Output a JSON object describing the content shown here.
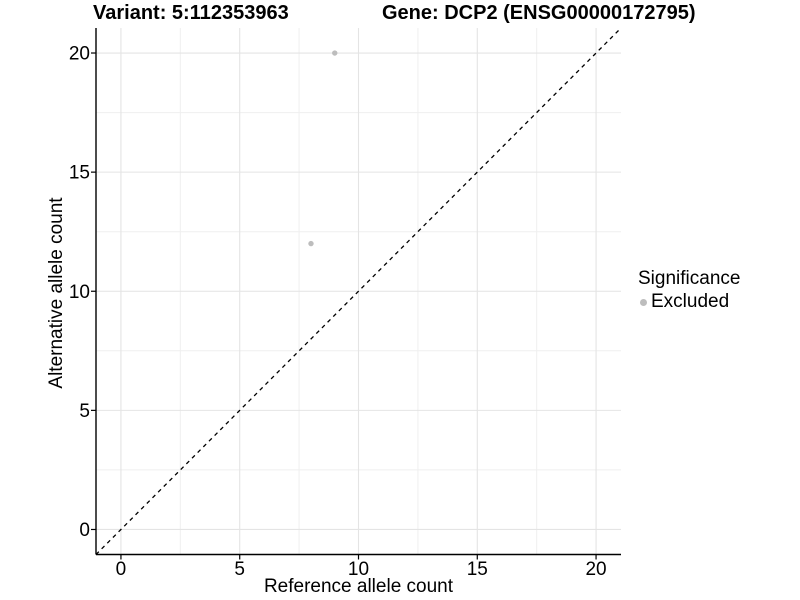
{
  "figure": {
    "title_left": "Variant: 5:112353963",
    "title_right": "Gene: DCP2 (ENSG00000172795)"
  },
  "axes": {
    "x_label": "Reference allele count",
    "y_label": "Alternative allele count"
  },
  "legend": {
    "title": "Significance",
    "items": [
      {
        "label": "Excluded",
        "color": "#bdbdbd"
      }
    ]
  },
  "chart_data": {
    "type": "scatter",
    "title": "Variant: 5:112353963 | Gene: DCP2 (ENSG00000172795)",
    "xlabel": "Reference allele count",
    "ylabel": "Alternative allele count",
    "xlim": [
      -1.05,
      21.05
    ],
    "ylim": [
      -1.05,
      21.05
    ],
    "x_ticks": [
      0,
      5,
      10,
      15,
      20
    ],
    "y_ticks": [
      0,
      5,
      10,
      15,
      20
    ],
    "x_minor_ticks": [
      2.5,
      7.5,
      12.5,
      17.5
    ],
    "y_minor_ticks": [
      2.5,
      7.5,
      12.5,
      17.5
    ],
    "grid": true,
    "legend_position": "right",
    "series": [
      {
        "name": "Excluded",
        "color": "#bdbdbd",
        "points": [
          {
            "x": 9,
            "y": 20
          },
          {
            "x": 8,
            "y": 12
          }
        ]
      }
    ],
    "reference_line": {
      "type": "identity",
      "style": "dashed",
      "color": "#000000"
    }
  },
  "colors": {
    "grid_major": "#e4e4e4",
    "grid_minor": "#efefef",
    "axis": "#000000",
    "point": "#bdbdbd",
    "text": "#000000"
  }
}
